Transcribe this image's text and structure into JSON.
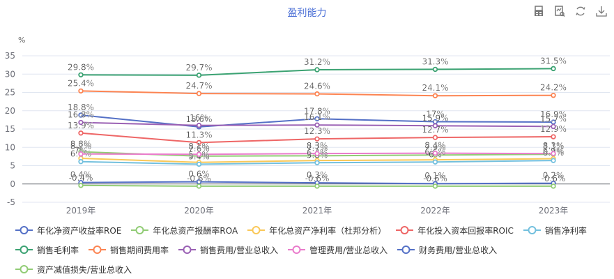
{
  "title": "盈利能力",
  "toolbar": [
    {
      "name": "data-view-icon",
      "label": "数据视图"
    },
    {
      "name": "magic-view-icon",
      "label": "视图"
    },
    {
      "name": "refresh-icon",
      "label": "还原"
    },
    {
      "name": "download-icon",
      "label": "保存为图片"
    }
  ],
  "chart_data": {
    "type": "line",
    "title": "盈利能力",
    "ylabel": "%",
    "xlabel": "",
    "ylim": [
      -5,
      35
    ],
    "yticks": [
      -5,
      0,
      5,
      10,
      15,
      20,
      25,
      30,
      35
    ],
    "grid": true,
    "legend_position": "bottom",
    "categories": [
      "2019年",
      "2020年",
      "2021年",
      "2022年",
      "2023年"
    ],
    "series": [
      {
        "name": "年化净资产收益率ROE",
        "color": "#5470c6",
        "values": [
          18.8,
          15.6,
          17.8,
          17,
          16.9
        ],
        "labels": [
          "18.8%",
          "15.6%",
          "17.8%",
          "17%",
          "16.9%"
        ]
      },
      {
        "name": "年化总资产报酬率ROA",
        "color": "#91cc75",
        "values": [
          8.8,
          7.6,
          7.7,
          7.9,
          8.1
        ],
        "labels": [
          "8.8%",
          "7.6%",
          "7.7%",
          "7.9%",
          "8.1%"
        ]
      },
      {
        "name": "年化总资产净利率（杜邦分析）",
        "color": "#fac858",
        "values": [
          7.0,
          5.9,
          6.4,
          6.6,
          6.9
        ],
        "labels": [
          "7%",
          "5.9%",
          "6.4%",
          "6.6%",
          "6.9%"
        ]
      },
      {
        "name": "年化投入资本回报率ROIC",
        "color": "#ee6666",
        "values": [
          13.9,
          11.3,
          12.3,
          12.7,
          12.9
        ],
        "labels": [
          "13.9%",
          "11.3%",
          "12.3%",
          "12.7%",
          "12.9%"
        ]
      },
      {
        "name": "销售净利率",
        "color": "#73c0de",
        "values": [
          6.1,
          5.4,
          5.8,
          6.0,
          6.4
        ],
        "labels": [
          "6.1%",
          "5.4%",
          "5.8%",
          "6%",
          "6.4%"
        ]
      },
      {
        "name": "销售毛利率",
        "color": "#3ba272",
        "values": [
          29.8,
          29.7,
          31.2,
          31.3,
          31.5
        ],
        "labels": [
          "29.8%",
          "29.7%",
          "31.2%",
          "31.3%",
          "31.5%"
        ]
      },
      {
        "name": "销售期间费用率",
        "color": "#fc8452",
        "values": [
          25.4,
          24.7,
          24.6,
          24.1,
          24.2
        ],
        "labels": [
          "25.4%",
          "24.7%",
          "24.6%",
          "24.1%",
          "24.2%"
        ]
      },
      {
        "name": "销售费用/营业总收入",
        "color": "#9a60b4",
        "values": [
          16.8,
          16.0,
          16.1,
          15.9,
          15.7
        ],
        "labels": [
          "16.8%",
          "16%",
          "16.1%",
          "15.9%",
          "15.7%"
        ]
      },
      {
        "name": "管理费用/营业总收入",
        "color": "#ea7ccc",
        "values": [
          8.2,
          8.1,
          8.3,
          8.4,
          8.3
        ],
        "labels": [
          "8.2%",
          "8.1%",
          "8.3%",
          "8.4%",
          "8.3%"
        ]
      },
      {
        "name": "财务费用/营业总收入",
        "color": "#5470c6",
        "values": [
          0.4,
          0.6,
          0.3,
          0.1,
          0.2
        ],
        "labels": [
          "0.4%",
          "0.6%",
          "0.3%",
          "0.1%",
          "0.2%"
        ]
      },
      {
        "name": "资产减值损失/营业总收入",
        "color": "#91cc75",
        "values": [
          -0.4,
          -0.6,
          -0.6,
          -0.6,
          -0.6
        ],
        "labels": [
          "-0.4%",
          "-0.6%",
          "-0.6%",
          "-0.6%",
          "-0.6%"
        ]
      }
    ]
  }
}
